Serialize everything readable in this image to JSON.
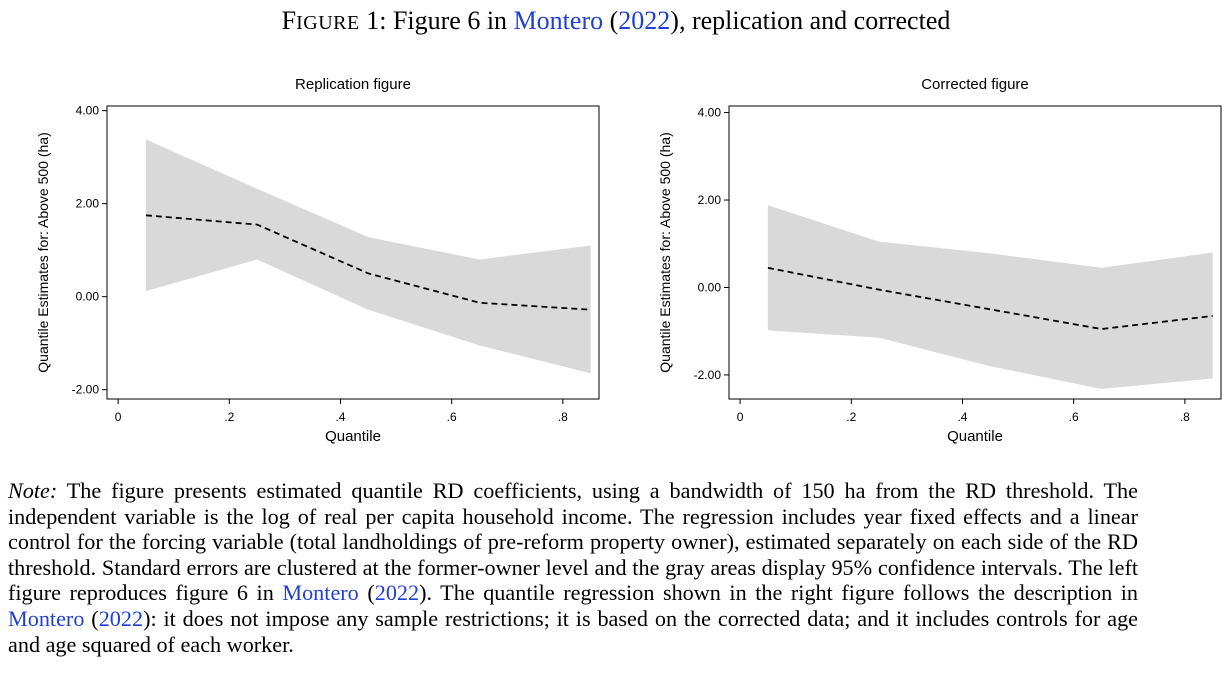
{
  "caption": {
    "label_first": "F",
    "label_rest": "IGURE",
    "number": "1:",
    "text": "Figure 6 in",
    "cite_author": "Montero",
    "open_paren": "(",
    "cite_year": "2022",
    "close_rest": "), replication and corrected"
  },
  "colors": {
    "band": "#d9d9d9",
    "line": "#000000",
    "link": "#1f3fd6"
  },
  "chart_data": [
    {
      "type": "line",
      "title": "Replication figure",
      "xlabel": "Quantile",
      "ylabel": "Quantile Estimates for: Above 500 (ha)",
      "xlim": [
        -0.02,
        0.865
      ],
      "ylim": [
        -2.2,
        4.1
      ],
      "xticks": [
        0,
        0.2,
        0.4,
        0.6,
        0.8
      ],
      "xtick_labels": [
        "0",
        ".2",
        ".4",
        ".6",
        ".8"
      ],
      "yticks": [
        -2,
        0,
        2,
        4
      ],
      "ytick_labels": [
        "-2.00",
        "0.00",
        "2.00",
        "4.00"
      ],
      "x": [
        0.05,
        0.25,
        0.45,
        0.65,
        0.85
      ],
      "series": [
        {
          "role": "estimate",
          "style": "dashed",
          "values": [
            1.75,
            1.55,
            0.5,
            -0.13,
            -0.28
          ]
        },
        {
          "role": "ci_lower",
          "values": [
            0.12,
            0.8,
            -0.28,
            -1.05,
            -1.65
          ]
        },
        {
          "role": "ci_upper",
          "values": [
            3.38,
            2.32,
            1.28,
            0.8,
            1.1
          ]
        }
      ],
      "grid": false
    },
    {
      "type": "line",
      "title": "Corrected figure",
      "xlabel": "Quantile",
      "ylabel": "Quantile Estimates for: Above 500 (ha)",
      "xlim": [
        -0.02,
        0.865
      ],
      "ylim": [
        -2.55,
        4.15
      ],
      "xticks": [
        0,
        0.2,
        0.4,
        0.6,
        0.8
      ],
      "xtick_labels": [
        "0",
        ".2",
        ".4",
        ".6",
        ".8"
      ],
      "yticks": [
        -2,
        0,
        2,
        4
      ],
      "ytick_labels": [
        "-2.00",
        "0.00",
        "2.00",
        "4.00"
      ],
      "x": [
        0.05,
        0.25,
        0.45,
        0.65,
        0.85
      ],
      "series": [
        {
          "role": "estimate",
          "style": "dashed",
          "values": [
            0.45,
            -0.05,
            -0.5,
            -0.95,
            -0.65
          ]
        },
        {
          "role": "ci_lower",
          "values": [
            -0.98,
            -1.15,
            -1.8,
            -2.32,
            -2.08
          ]
        },
        {
          "role": "ci_upper",
          "values": [
            1.88,
            1.05,
            0.78,
            0.45,
            0.8
          ]
        }
      ],
      "grid": false
    }
  ],
  "note": {
    "label": "Note:",
    "part1": " The figure presents estimated quantile RD coefficients, using a bandwidth of 150 ha from the RD threshold. The independent variable is the log of real per capita household income. The regression includes year fixed effects and a linear control for the forcing variable (total landholdings of pre-reform property owner), estimated separately on each side of the RD threshold. Standard errors are clustered at the former-owner level and the gray areas display 95% confidence intervals. The left figure reproduces figure 6 in ",
    "cite1_author": "Montero",
    "cite1_open": " (",
    "cite1_year": "2022",
    "part2": "). The quantile regression shown in the right figure follows the description in ",
    "cite2_author": "Montero",
    "cite2_open": " (",
    "cite2_year": "2022",
    "part3": "): it does not impose any sample restrictions; it is based on the corrected data; and it includes controls for age and age squared of each worker."
  }
}
